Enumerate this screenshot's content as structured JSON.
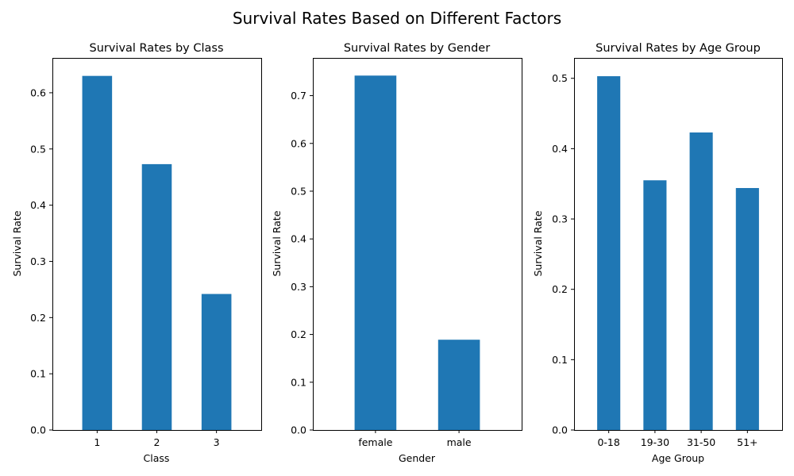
{
  "figure": {
    "suptitle": "Survival Rates Based on Different Factors",
    "bar_color": "#1f77b4"
  },
  "chart_data": [
    {
      "type": "bar",
      "title": "Survival Rates by Class",
      "xlabel": "Class",
      "ylabel": "Survival Rate",
      "categories": [
        "1",
        "2",
        "3"
      ],
      "values": [
        0.63,
        0.473,
        0.242
      ],
      "ylim": [
        0,
        0.662
      ],
      "yticks": [
        0.0,
        0.1,
        0.2,
        0.3,
        0.4,
        0.5,
        0.6
      ],
      "ytick_labels": [
        "0.0",
        "0.1",
        "0.2",
        "0.3",
        "0.4",
        "0.5",
        "0.6"
      ],
      "grid": false
    },
    {
      "type": "bar",
      "title": "Survival Rates by Gender",
      "xlabel": "Gender",
      "ylabel": "Survival Rate",
      "categories": [
        "female",
        "male"
      ],
      "values": [
        0.742,
        0.189
      ],
      "ylim": [
        0,
        0.779
      ],
      "yticks": [
        0.0,
        0.1,
        0.2,
        0.3,
        0.4,
        0.5,
        0.6,
        0.7
      ],
      "ytick_labels": [
        "0.0",
        "0.1",
        "0.2",
        "0.3",
        "0.4",
        "0.5",
        "0.6",
        "0.7"
      ],
      "grid": false
    },
    {
      "type": "bar",
      "title": "Survival Rates by Age Group",
      "xlabel": "Age Group",
      "ylabel": "Survival Rate",
      "categories": [
        "0-18",
        "19-30",
        "31-50",
        "51+"
      ],
      "values": [
        0.503,
        0.355,
        0.423,
        0.344
      ],
      "ylim": [
        0,
        0.529
      ],
      "yticks": [
        0.0,
        0.1,
        0.2,
        0.3,
        0.4,
        0.5
      ],
      "ytick_labels": [
        "0.0",
        "0.1",
        "0.2",
        "0.3",
        "0.4",
        "0.5"
      ],
      "grid": false
    }
  ]
}
